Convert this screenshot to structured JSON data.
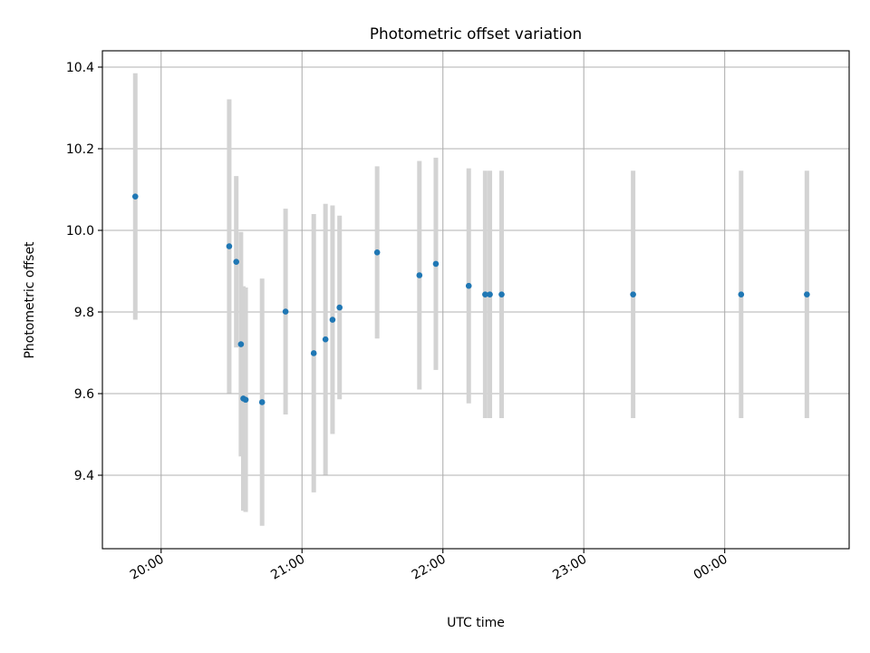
{
  "chart_data": {
    "type": "scatter",
    "title": "Photometric offset variation",
    "xlabel": "UTC time",
    "ylabel": "Photometric offset",
    "x_unit": "time",
    "xlim": [
      "19:35",
      "00:53"
    ],
    "ylim": [
      9.22,
      10.44
    ],
    "grid": true,
    "x_ticks": [
      {
        "value": "20:00",
        "label": "20:00"
      },
      {
        "value": "21:00",
        "label": "21:00"
      },
      {
        "value": "22:00",
        "label": "22:00"
      },
      {
        "value": "23:00",
        "label": "23:00"
      },
      {
        "value": "00:00",
        "label": "00:00"
      }
    ],
    "y_ticks": [
      {
        "value": 9.4,
        "label": "9.4"
      },
      {
        "value": 9.6,
        "label": "9.6"
      },
      {
        "value": 9.8,
        "label": "9.8"
      },
      {
        "value": 10.0,
        "label": "10.0"
      },
      {
        "value": 10.2,
        "label": "10.2"
      },
      {
        "value": 10.4,
        "label": "10.4"
      }
    ],
    "series": [
      {
        "color": "#1f77b4",
        "errorbar_color": "#d3d3d3",
        "points": [
          {
            "x": "19:49",
            "y": 10.083,
            "err": 0.302
          },
          {
            "x": "20:29",
            "y": 9.961,
            "err": 0.36
          },
          {
            "x": "20:32",
            "y": 9.923,
            "err": 0.21
          },
          {
            "x": "20:34",
            "y": 9.721,
            "err": 0.275
          },
          {
            "x": "20:35",
            "y": 9.588,
            "err": 0.275
          },
          {
            "x": "20:36",
            "y": 9.585,
            "err": 0.275
          },
          {
            "x": "20:43",
            "y": 9.579,
            "err": 0.303
          },
          {
            "x": "20:53",
            "y": 9.801,
            "err": 0.252
          },
          {
            "x": "21:05",
            "y": 9.699,
            "err": 0.341
          },
          {
            "x": "21:10",
            "y": 9.733,
            "err": 0.332
          },
          {
            "x": "21:13",
            "y": 9.781,
            "err": 0.28
          },
          {
            "x": "21:16",
            "y": 9.811,
            "err": 0.225
          },
          {
            "x": "21:32",
            "y": 9.946,
            "err": 0.211
          },
          {
            "x": "21:50",
            "y": 9.89,
            "err": 0.28
          },
          {
            "x": "21:57",
            "y": 9.918,
            "err": 0.26
          },
          {
            "x": "22:11",
            "y": 9.864,
            "err": 0.288
          },
          {
            "x": "22:18",
            "y": 9.843,
            "err": 0.303
          },
          {
            "x": "22:20",
            "y": 9.843,
            "err": 0.303
          },
          {
            "x": "22:25",
            "y": 9.843,
            "err": 0.303
          },
          {
            "x": "23:21",
            "y": 9.843,
            "err": 0.303
          },
          {
            "x": "00:07",
            "y": 9.843,
            "err": 0.303
          },
          {
            "x": "00:35",
            "y": 9.843,
            "err": 0.303
          }
        ]
      }
    ]
  }
}
